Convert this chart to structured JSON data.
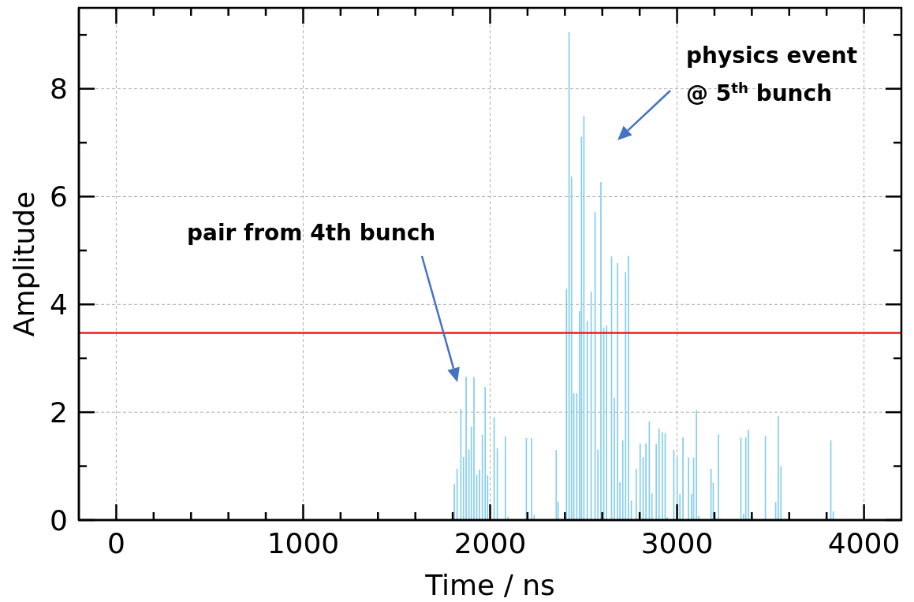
{
  "chart_data": {
    "type": "bar",
    "xlabel": "Time / ns",
    "ylabel": "Amplitude",
    "x": [
      1809,
      1824,
      1844,
      1858,
      1872,
      1887,
      1900,
      1914,
      1929,
      1944,
      1959,
      1974,
      1987,
      2022,
      2039,
      2047,
      2082,
      2096,
      2194,
      2222,
      2236,
      2354,
      2364,
      2409,
      2423,
      2436,
      2448,
      2464,
      2479,
      2489,
      2502,
      2520,
      2541,
      2562,
      2577,
      2593,
      2608,
      2623,
      2650,
      2665,
      2682,
      2695,
      2710,
      2725,
      2740,
      2756,
      2782,
      2803,
      2819,
      2834,
      2852,
      2866,
      2889,
      2904,
      2922,
      2937,
      2948,
      2983,
      3001,
      3016,
      3032,
      3046,
      3062,
      3078,
      3089,
      3104,
      3117,
      3182,
      3194,
      3222,
      3236,
      3342,
      3356,
      3368,
      3382,
      3473,
      3485,
      3528,
      3542,
      3556,
      3823,
      3836
    ],
    "values": [
      0.67,
      0.95,
      2.06,
      1.17,
      2.66,
      1.31,
      1.73,
      2.65,
      0.84,
      0.94,
      1.58,
      2.47,
      0.83,
      1.91,
      1.33,
      null,
      1.55,
      0.06,
      1.52,
      1.52,
      0.1,
      1.3,
      0.34,
      4.29,
      9.05,
      6.37,
      2.35,
      2.35,
      3.88,
      7.11,
      7.5,
      3.69,
      4.24,
      5.72,
      1.31,
      6.27,
      3.57,
      3.61,
      4.89,
      2.27,
      4.77,
      0.7,
      1.48,
      4.6,
      4.9,
      0.36,
      0.95,
      1.42,
      1.17,
      1.42,
      1.83,
      0.5,
      1.41,
      1.7,
      1.63,
      1.61,
      0.05,
      1.3,
      1.17,
      0.48,
      1.53,
      null,
      1.16,
      0.49,
      1.16,
      2.04,
      0.08,
      0.95,
      0.69,
      1.59,
      null,
      1.53,
      0.12,
      1.53,
      1.67,
      1.56,
      null,
      0.33,
      1.93,
      1.0,
      1.48,
      0.16
    ],
    "color": "#87ceeb",
    "xlim": [
      -200,
      4200
    ],
    "xticks": [
      0,
      {
        "value": 200,
        "label": null
      },
      {
        "value": 400,
        "label": null
      },
      {
        "value": 600,
        "label": null
      },
      {
        "value": 800,
        "label": null
      },
      1000,
      {
        "value": 1200,
        "label": null
      },
      {
        "value": 1400,
        "label": null
      },
      {
        "value": 1600,
        "label": null
      },
      {
        "value": 1800,
        "label": null
      },
      2000,
      {
        "value": 2200,
        "label": null
      },
      {
        "value": 2400,
        "label": null
      },
      {
        "value": 2600,
        "label": null
      },
      {
        "value": 2800,
        "label": null
      },
      3000,
      {
        "value": 3200,
        "label": null
      },
      {
        "value": 3400,
        "label": null
      },
      {
        "value": 3600,
        "label": null
      },
      {
        "value": 3800,
        "label": null
      },
      4000
    ],
    "ylim": [
      0,
      9.5
    ],
    "yticks": [
      0,
      {
        "value": 1,
        "label": null
      },
      2,
      {
        "value": 3,
        "label": null
      },
      4,
      {
        "value": 5,
        "label": null
      },
      6,
      {
        "value": 7,
        "label": null
      },
      8,
      {
        "value": 9,
        "label": null
      }
    ],
    "grid": true,
    "ref_lines": [
      {
        "axis": "y",
        "value": 3.47,
        "color": "#ee1c1c"
      }
    ],
    "annotations": [
      "pair from 4th bunch",
      "physics event\n@ 5$^{th}$ bunch"
    ]
  }
}
